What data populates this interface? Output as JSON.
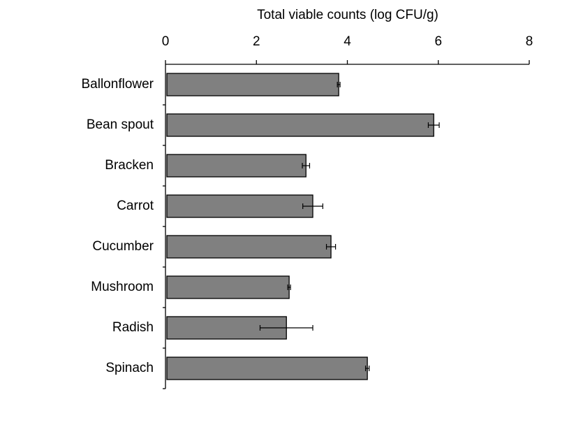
{
  "chart_data": {
    "type": "hbar",
    "x_label": "Total viable counts (log CFU/g)",
    "categories": [
      "Ballonflower",
      "Bean spout",
      "Bracken",
      "Carrot",
      "Cucumber",
      "Mushroom",
      "Radish",
      "Spinach"
    ],
    "values": [
      3.81,
      5.9,
      3.09,
      3.24,
      3.64,
      2.72,
      2.66,
      4.44
    ],
    "errors": [
      0.03,
      0.12,
      0.08,
      0.22,
      0.1,
      0.03,
      0.58,
      0.04
    ],
    "color": "#808080",
    "xlim": [
      0,
      8
    ],
    "xticks": [
      0,
      2,
      4,
      6,
      8
    ],
    "axis_position": "top"
  }
}
